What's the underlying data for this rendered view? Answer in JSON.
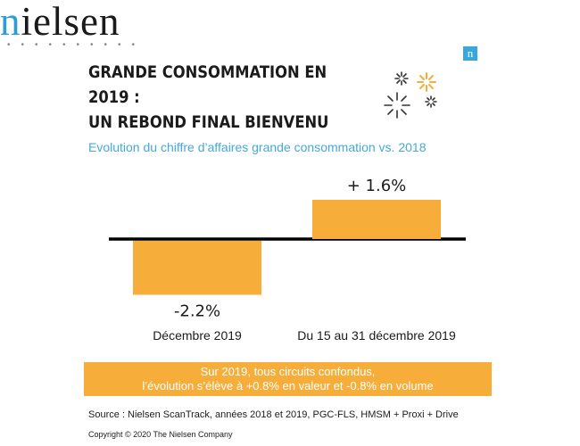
{
  "brand": {
    "logo_text": "nielsen",
    "badge_letter": "n"
  },
  "title_lines": [
    "GRANDE CONSOMMATION EN 2019 :",
    "UN REBOND FINAL BIENVENU"
  ],
  "subtitle": "Evolution du chiffre d’affaires grande consommation vs. 2018",
  "colors": {
    "bar": "#f7ad3a",
    "accent": "#46a9d8",
    "axis": "#000000",
    "text": "#1b1b1b"
  },
  "chart_data": {
    "type": "bar",
    "categories": [
      "Décembre 2019",
      "Du 15 au 31 décembre 2019"
    ],
    "values": [
      -2.2,
      1.6
    ],
    "data_labels": [
      "-2.2%",
      "+ 1.6%"
    ],
    "unit": "%",
    "ylim": [
      -2.2,
      1.6
    ],
    "grid": false,
    "legend": "none",
    "baseline": 0
  },
  "banner_lines": [
    "Sur 2019, tous circuits confondus,",
    "l’évolution s’élève à +0.8% en valeur et -0.8% en volume"
  ],
  "source": "Source : Nielsen ScanTrack, années 2018 et 2019, PGC-FLS, HMSM + Proxi + Drive",
  "copyright": "Copyright © 2020 The Nielsen Company"
}
